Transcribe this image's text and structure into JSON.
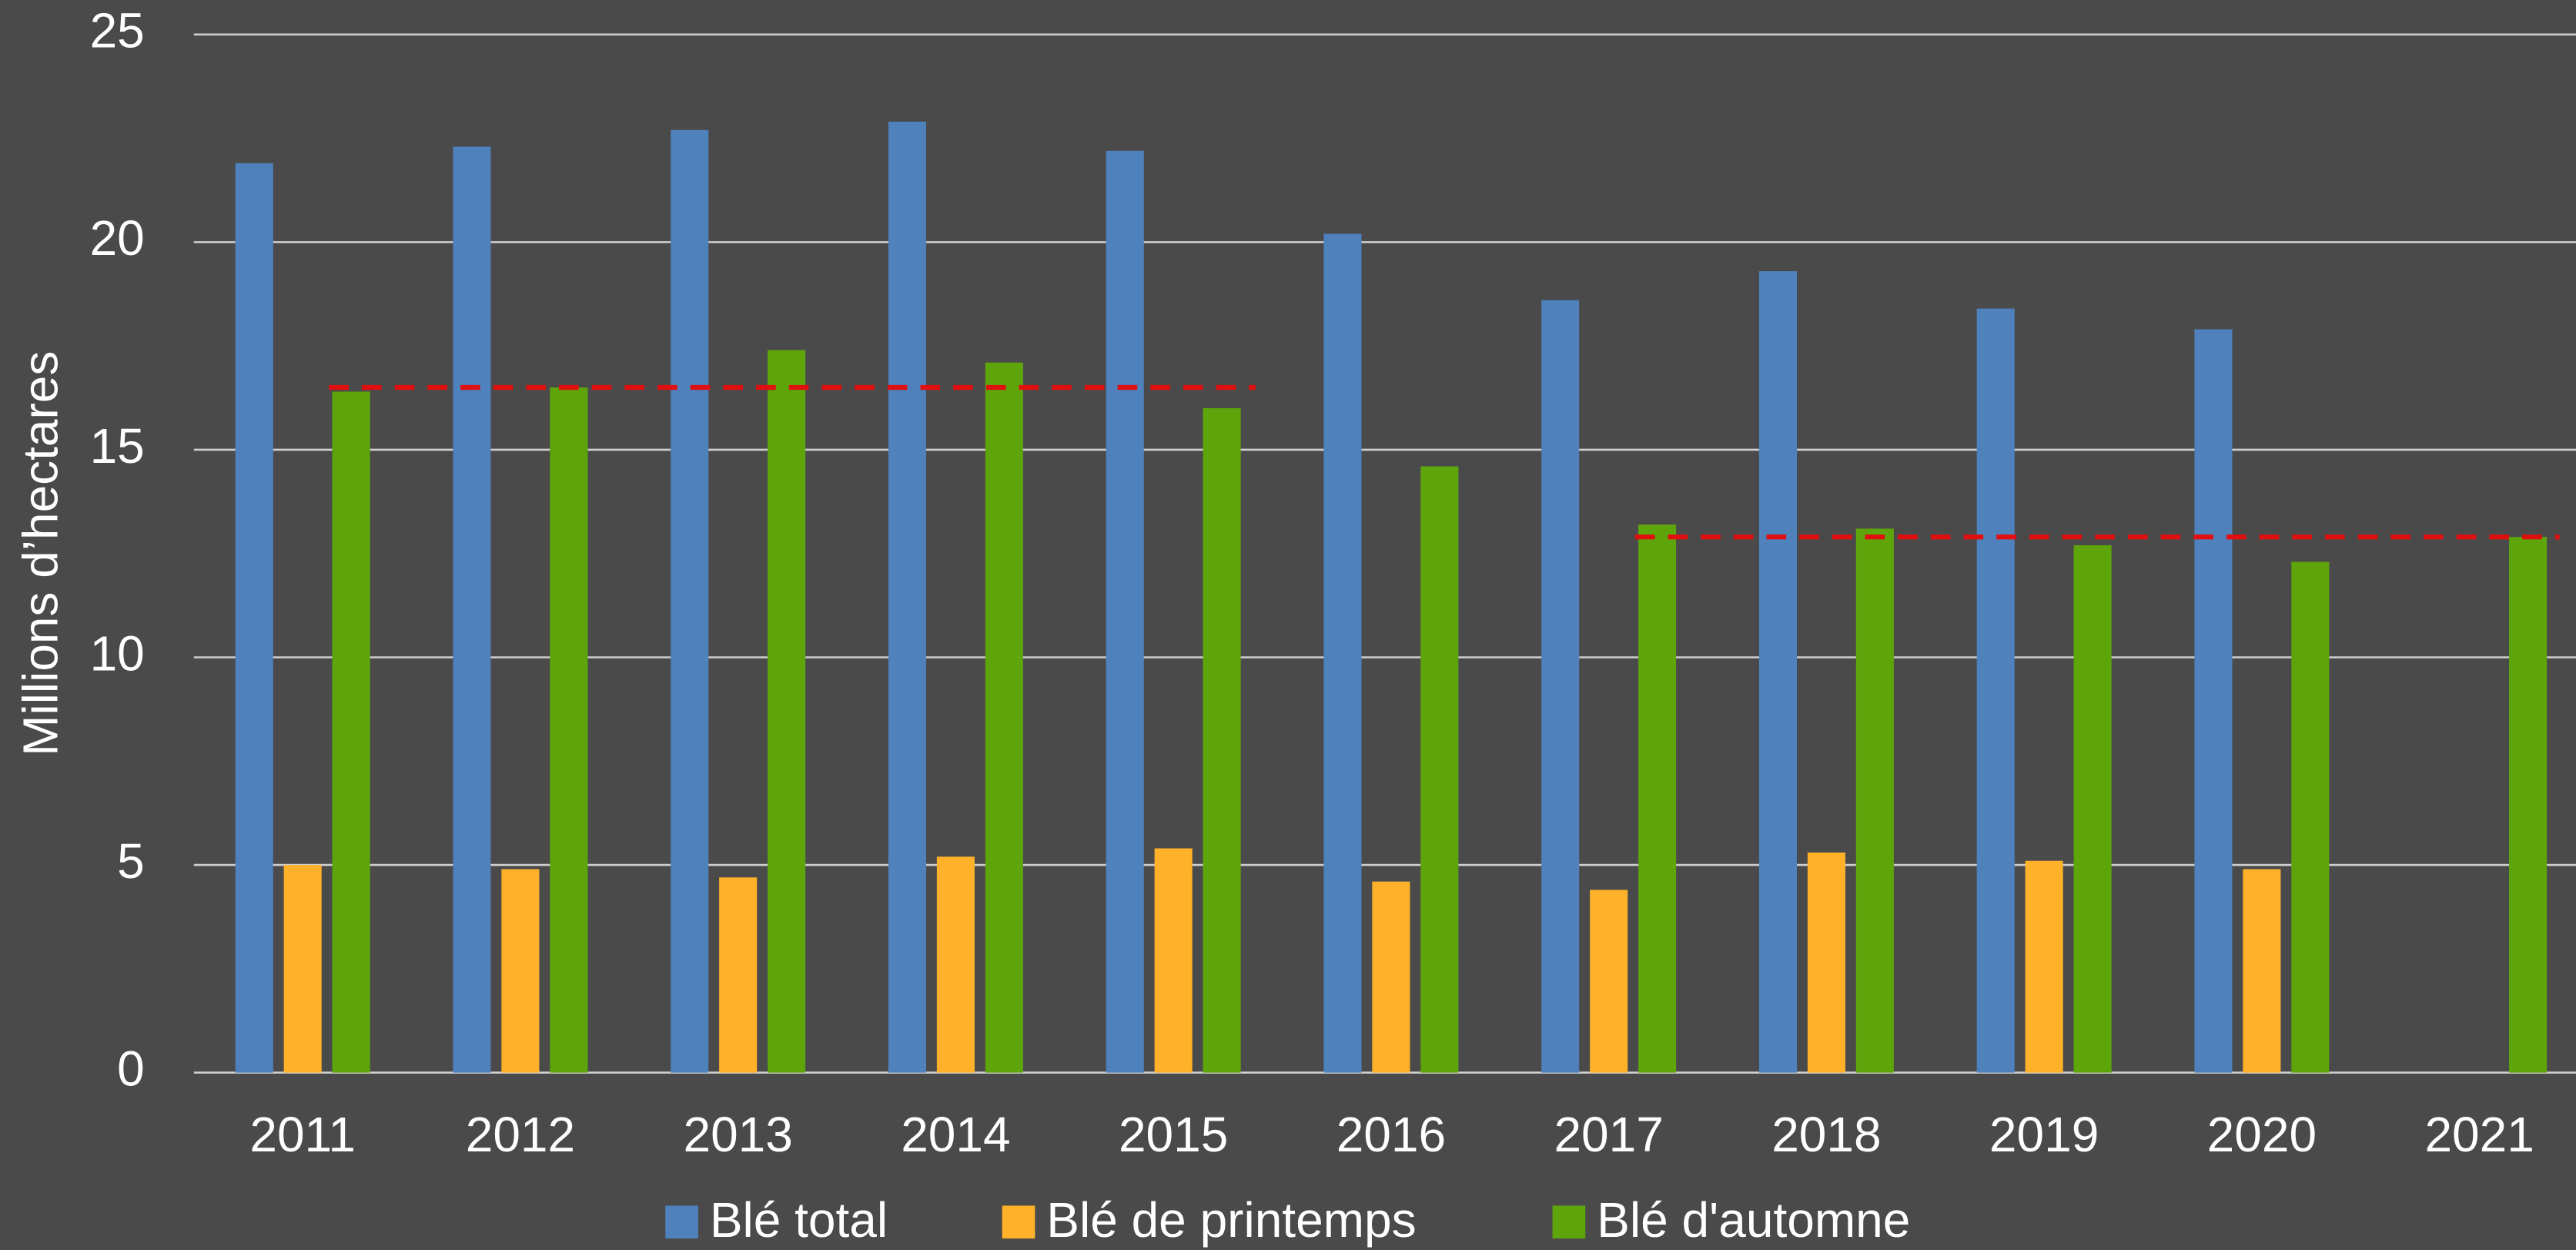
{
  "chart_data": {
    "type": "bar",
    "ylabel": "Millions d’hectares",
    "categories": [
      "2011",
      "2012",
      "2013",
      "2014",
      "2015",
      "2016",
      "2017",
      "2018",
      "2019",
      "2020",
      "2021"
    ],
    "series": [
      {
        "name": "Blé total",
        "color": "#4f81bd",
        "values": [
          21.9,
          22.3,
          22.7,
          22.9,
          22.2,
          20.2,
          18.6,
          19.3,
          18.4,
          17.9,
          null
        ]
      },
      {
        "name": "Blé de printemps",
        "color": "#ffb12a",
        "values": [
          5.0,
          4.9,
          4.7,
          5.2,
          5.4,
          4.6,
          4.4,
          5.3,
          5.1,
          4.9,
          null
        ]
      },
      {
        "name": "Blé d'automne",
        "color": "#5ea50c",
        "values": [
          16.4,
          16.5,
          17.4,
          17.1,
          16.0,
          14.6,
          13.2,
          13.1,
          12.7,
          12.3,
          12.9
        ]
      }
    ],
    "reference_lines": [
      {
        "value": 16.5,
        "from": "2011",
        "to": "2015",
        "color": "#e01010"
      },
      {
        "value": 12.9,
        "from": "2017",
        "to": "2021",
        "color": "#e01010"
      }
    ],
    "ylim": [
      0,
      25
    ],
    "yticks": [
      0,
      5,
      10,
      15,
      20,
      25
    ],
    "grid": true,
    "legend": "bottom"
  }
}
